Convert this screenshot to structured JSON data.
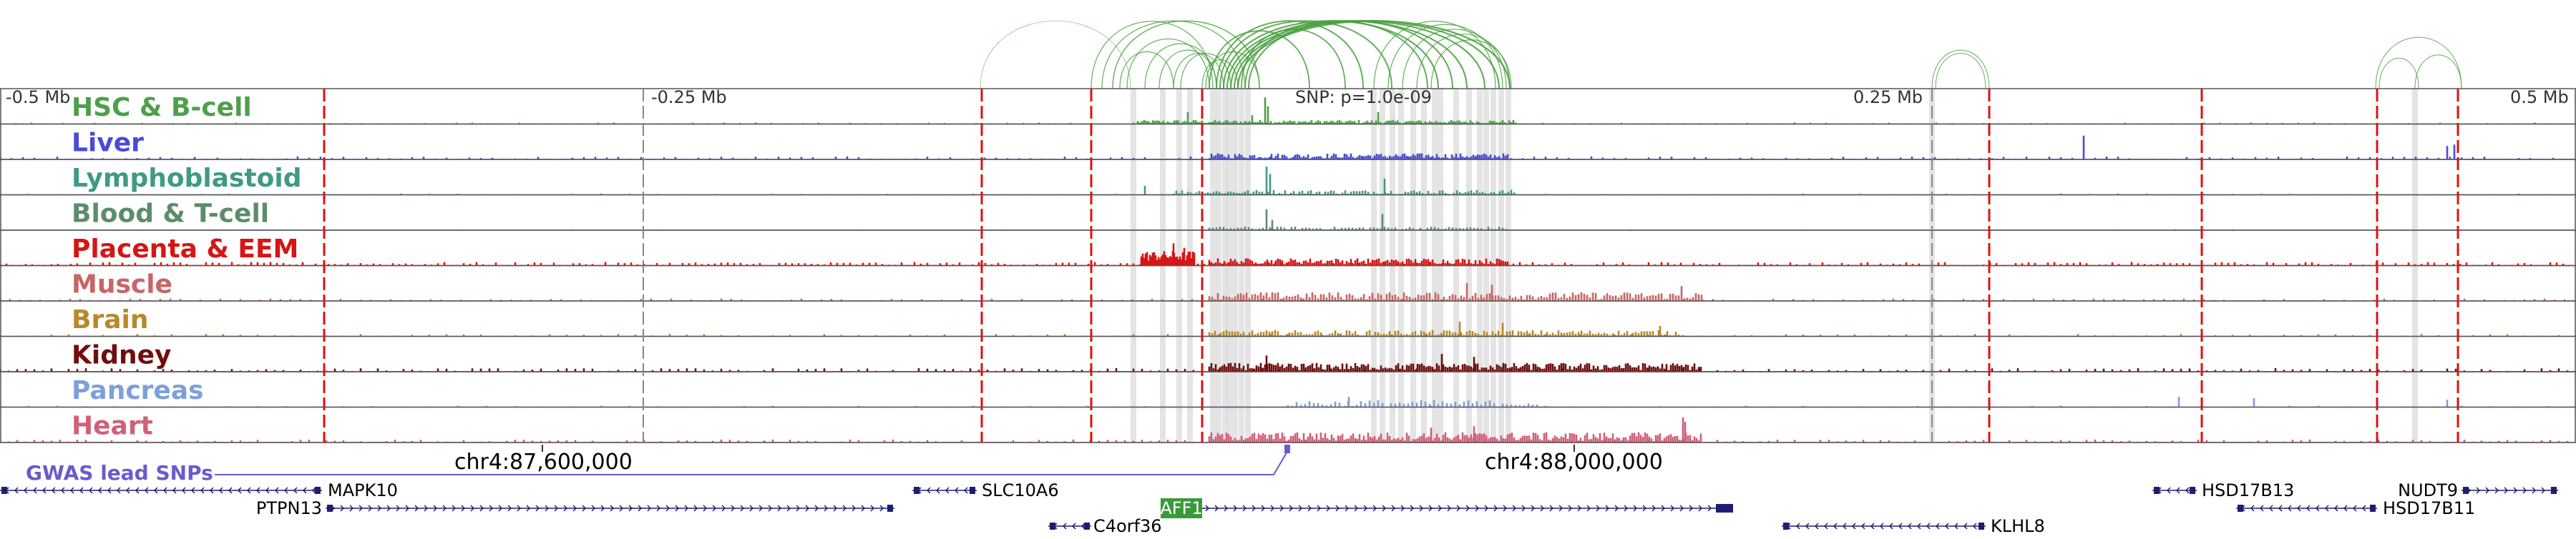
{
  "scale": {
    "left_label": "-0.5 Mb",
    "left_mid_label": "-0.25 Mb",
    "right_mid_label": "0.25 Mb",
    "right_label": "0.5 Mb",
    "snp_label": "SNP: p=1.0e-09"
  },
  "tracks": [
    {
      "label": "HSC & B-cell",
      "color": "#4e9f4a",
      "profile": "hsc"
    },
    {
      "label": "Liver",
      "color": "#4a4ad6",
      "profile": "liver"
    },
    {
      "label": "Lymphoblastoid",
      "color": "#3f9a84",
      "profile": "lympho"
    },
    {
      "label": "Blood & T-cell",
      "color": "#5c8c6a",
      "profile": "blood"
    },
    {
      "label": "Placenta & EEM",
      "color": "#d61515",
      "profile": "placenta"
    },
    {
      "label": "Muscle",
      "color": "#c96565",
      "profile": "muscle"
    },
    {
      "label": "Brain",
      "color": "#b8892a",
      "profile": "brain"
    },
    {
      "label": "Kidney",
      "color": "#6e0e0e",
      "profile": "kidney"
    },
    {
      "label": "Pancreas",
      "color": "#7f9fd8",
      "profile": "pancreas"
    },
    {
      "label": "Heart",
      "color": "#d06078",
      "profile": "heart"
    }
  ],
  "coordinates": {
    "left": "chr4:87,600,000",
    "right": "chr4:88,000,000"
  },
  "gwas_label": "GWAS lead SNPs",
  "genes": [
    {
      "name": "MAPK10",
      "strand": "-",
      "row": 1
    },
    {
      "name": "PTPN13",
      "strand": "+",
      "row": 2
    },
    {
      "name": "SLC10A6",
      "strand": "-",
      "row": 1
    },
    {
      "name": "C4orf36",
      "strand": "-",
      "row": 3
    },
    {
      "name": "AFF1",
      "strand": "+",
      "row": 2,
      "highlighted": true
    },
    {
      "name": "KLHL8",
      "strand": "-",
      "row": 3
    },
    {
      "name": "HSD17B13",
      "strand": "-",
      "row": 1
    },
    {
      "name": "NUDT9",
      "strand": "+",
      "row": 1
    },
    {
      "name": "HSD17B11",
      "strand": "-",
      "row": 2
    }
  ],
  "colors": {
    "loop": "#4aa040",
    "marker_red": "#e01010",
    "highlight_gray": "#d8d8d8",
    "gwas": "#6a5acd",
    "gene": "#1e1e70",
    "aff1_box": "#3a9a3a"
  }
}
